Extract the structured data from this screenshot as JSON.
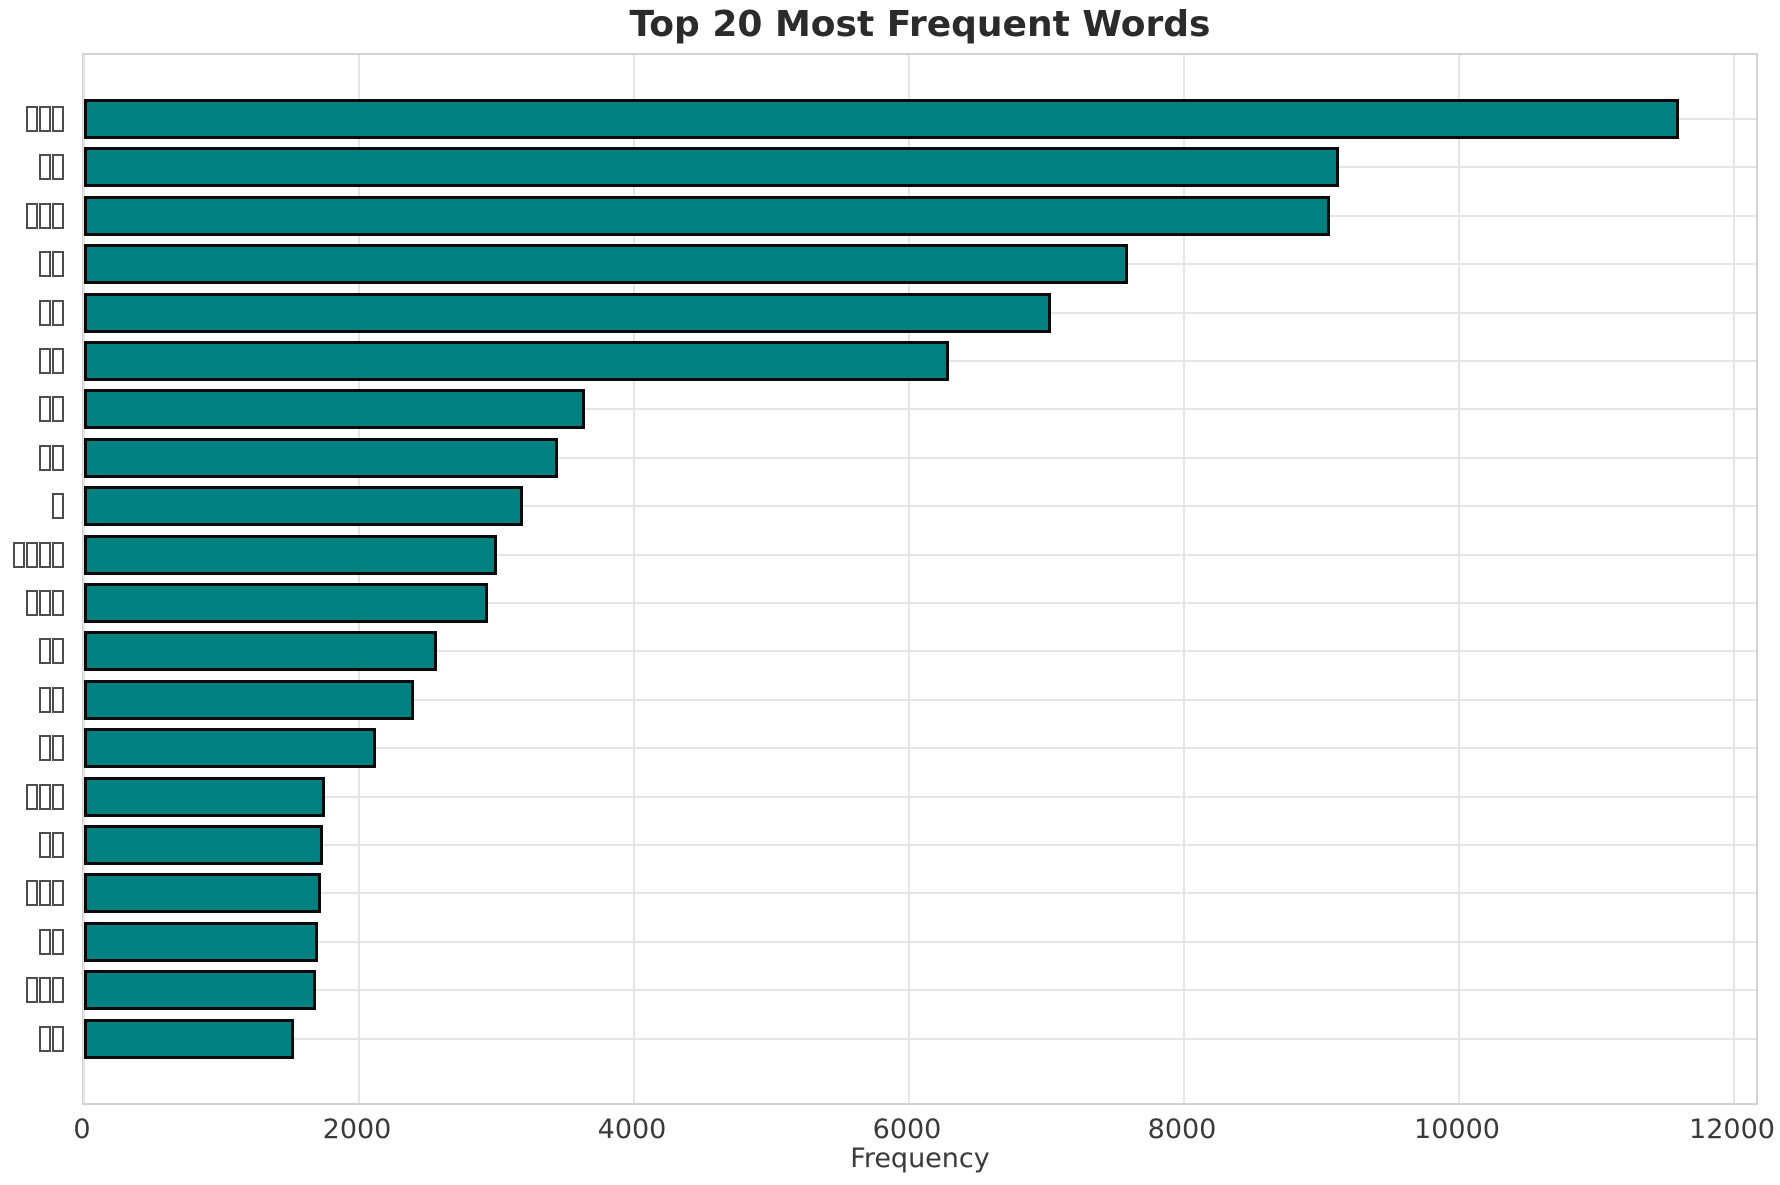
{
  "chart_data": {
    "type": "bar",
    "orientation": "horizontal",
    "title": "Top 20 Most Frequent Words",
    "xlabel": "Frequency",
    "ylabel": "",
    "xlim": [
      0,
      12196
    ],
    "xticks": [
      0,
      2000,
      4000,
      6000,
      8000,
      10000,
      12000
    ],
    "grid": "both",
    "legend": "none",
    "bar_color": "#008080",
    "bar_edge_color": "#0a0a0a",
    "grid_color": "#e5e5e5",
    "spine_color": "#d2d2d2",
    "label_note": "y-axis category labels rendered as missing-glyph (tofu) boxes",
    "categories": [
      "□□□",
      "□□",
      "□□□",
      "□□",
      "□□",
      "□□",
      "□□",
      "□□",
      "□",
      "□□□□",
      "□□□",
      "□□",
      "□□",
      "□□",
      "□□□",
      "□□",
      "□□□",
      "□□",
      "□□□",
      "□□"
    ],
    "values": [
      11600,
      9130,
      9060,
      7590,
      7030,
      6290,
      3640,
      3450,
      3190,
      3000,
      2940,
      2570,
      2400,
      2120,
      1750,
      1740,
      1720,
      1700,
      1690,
      1530
    ]
  }
}
